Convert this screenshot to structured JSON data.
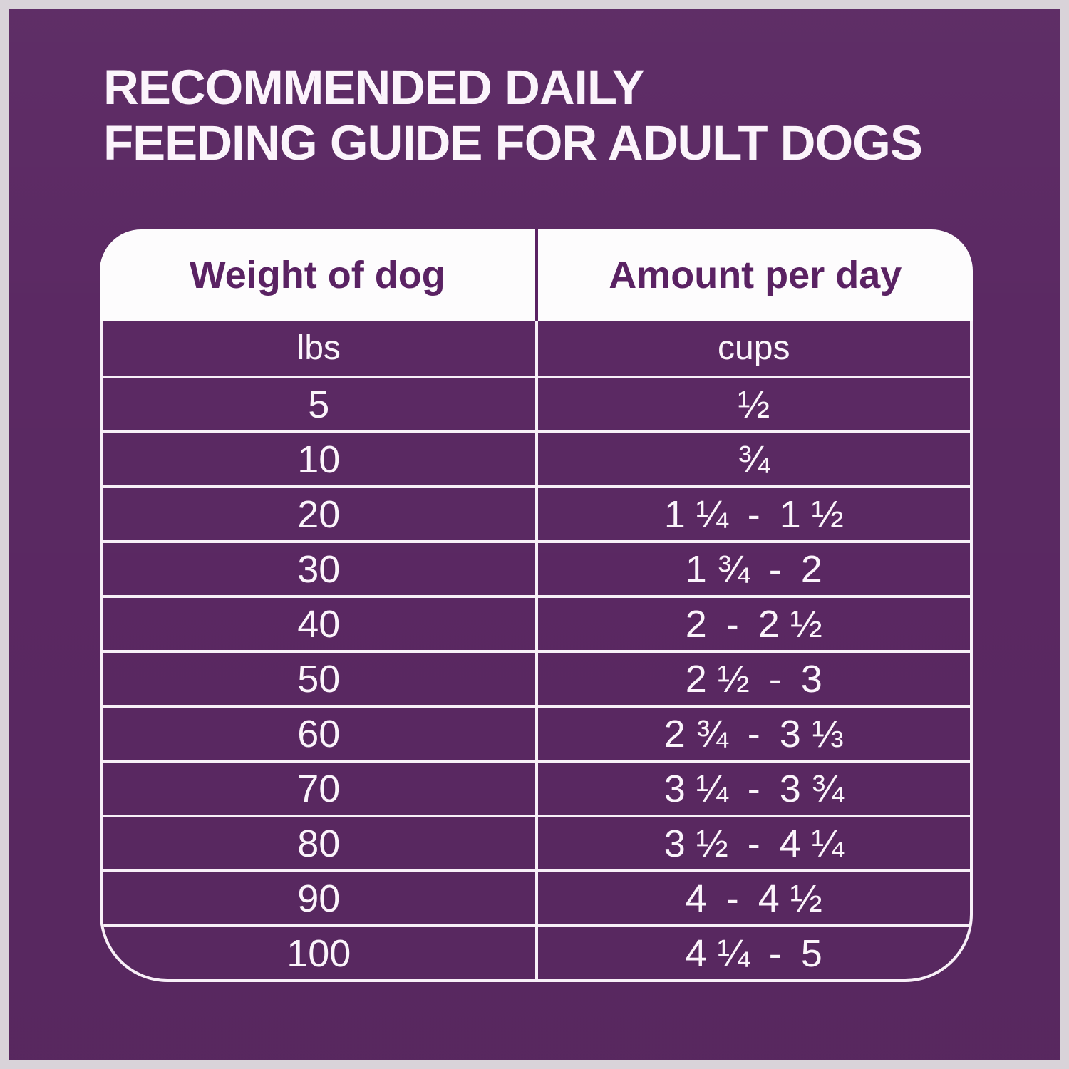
{
  "colors": {
    "frame": "#d9d3d9",
    "panel": "#5b2963",
    "header-bg": "#fdfcfd",
    "purple-text": "#5a2263",
    "line": "#f8f0f8",
    "text-light": "#fbf4fb"
  },
  "title": {
    "line1": "RECOMMENDED DAILY",
    "line2": "FEEDING GUIDE FOR ADULT DOGS"
  },
  "table": {
    "columns": [
      {
        "label": "Weight of dog",
        "unit": "lbs"
      },
      {
        "label": "Amount per day",
        "unit": "cups"
      }
    ],
    "rows": [
      {
        "weight": "5",
        "amount": "½"
      },
      {
        "weight": "10",
        "amount": "¾"
      },
      {
        "weight": "20",
        "amount": "1 ¼ - 1 ½"
      },
      {
        "weight": "30",
        "amount": "1 ¾ - 2"
      },
      {
        "weight": "40",
        "amount": "2 - 2 ½"
      },
      {
        "weight": "50",
        "amount": "2 ½ - 3"
      },
      {
        "weight": "60",
        "amount": "2 ¾ - 3 ⅓"
      },
      {
        "weight": "70",
        "amount": "3 ¼ - 3 ¾"
      },
      {
        "weight": "80",
        "amount": "3 ½ - 4 ¼"
      },
      {
        "weight": "90",
        "amount": "4 - 4 ½"
      },
      {
        "weight": "100",
        "amount": "4 ¼ - 5"
      }
    ]
  },
  "chart_data": {
    "type": "table",
    "title": "RECOMMENDED DAILY FEEDING GUIDE FOR ADULT DOGS",
    "columns": [
      "Weight of dog (lbs)",
      "Amount per day (cups)"
    ],
    "rows": [
      [
        "5",
        "½"
      ],
      [
        "10",
        "¾"
      ],
      [
        "20",
        "1 ¼ - 1 ½"
      ],
      [
        "30",
        "1 ¾ - 2"
      ],
      [
        "40",
        "2 - 2 ½"
      ],
      [
        "50",
        "2 ½ - 3"
      ],
      [
        "60",
        "2 ¾ - 3 ⅓"
      ],
      [
        "70",
        "3 ¼ - 3 ¾"
      ],
      [
        "80",
        "3 ½ - 4 ¼"
      ],
      [
        "90",
        "4 - 4 ½"
      ],
      [
        "100",
        "4 ¼ - 5"
      ]
    ]
  }
}
